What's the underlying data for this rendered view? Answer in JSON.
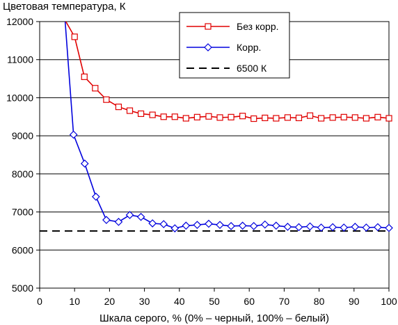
{
  "chart_data": {
    "type": "line",
    "ylabel": "Цветовая температура, К",
    "xlabel": "Шкала серого, % (0% – черный, 100% – белый)",
    "xlim": [
      0,
      100
    ],
    "ylim": [
      5000,
      12000
    ],
    "xticks": [
      "0",
      "10",
      "20",
      "30",
      "40",
      "50",
      "60",
      "70",
      "80",
      "90",
      "100"
    ],
    "yticks": [
      "5000",
      "6000",
      "7000",
      "8000",
      "9000",
      "10000",
      "11000",
      "12000"
    ],
    "grid": "horizontal",
    "legend_position": "top-right",
    "series": [
      {
        "name": "Без корр.",
        "color": "#e00000",
        "marker": "square",
        "x": [
          7.5,
          10,
          12.8,
          15.9,
          19.1,
          22.6,
          25.8,
          29,
          32.3,
          35.5,
          38.7,
          41.9,
          45.1,
          48.4,
          51.6,
          54.8,
          58.1,
          61.3,
          64.5,
          67.7,
          71,
          74.2,
          77.4,
          80.6,
          83.9,
          87.1,
          90.3,
          93.5,
          96.8,
          100
        ],
        "values": [
          12000,
          11600,
          10550,
          10250,
          9950,
          9760,
          9660,
          9580,
          9550,
          9500,
          9500,
          9460,
          9490,
          9510,
          9480,
          9490,
          9520,
          9450,
          9470,
          9460,
          9480,
          9470,
          9530,
          9460,
          9480,
          9490,
          9480,
          9460,
          9490,
          9460
        ]
      },
      {
        "name": "Корр.",
        "color": "#0000dd",
        "marker": "diamond",
        "x": [
          7.3,
          9.7,
          12.9,
          16.1,
          19.1,
          22.6,
          25.8,
          29,
          32.3,
          35.5,
          38.7,
          41.9,
          45.1,
          48.4,
          51.6,
          54.8,
          58.1,
          61.3,
          64.5,
          67.7,
          71,
          74.2,
          77.4,
          80.6,
          83.9,
          87.1,
          90.3,
          93.5,
          96.8,
          100
        ],
        "values": [
          12000,
          9030,
          8270,
          7400,
          6790,
          6740,
          6920,
          6870,
          6700,
          6680,
          6570,
          6640,
          6660,
          6690,
          6660,
          6630,
          6640,
          6630,
          6670,
          6640,
          6610,
          6600,
          6620,
          6590,
          6600,
          6590,
          6610,
          6590,
          6600,
          6580
        ]
      },
      {
        "name": "6500 К",
        "color": "#000000",
        "dashed": true,
        "x": [
          0,
          100
        ],
        "values": [
          6500,
          6500
        ]
      }
    ]
  }
}
